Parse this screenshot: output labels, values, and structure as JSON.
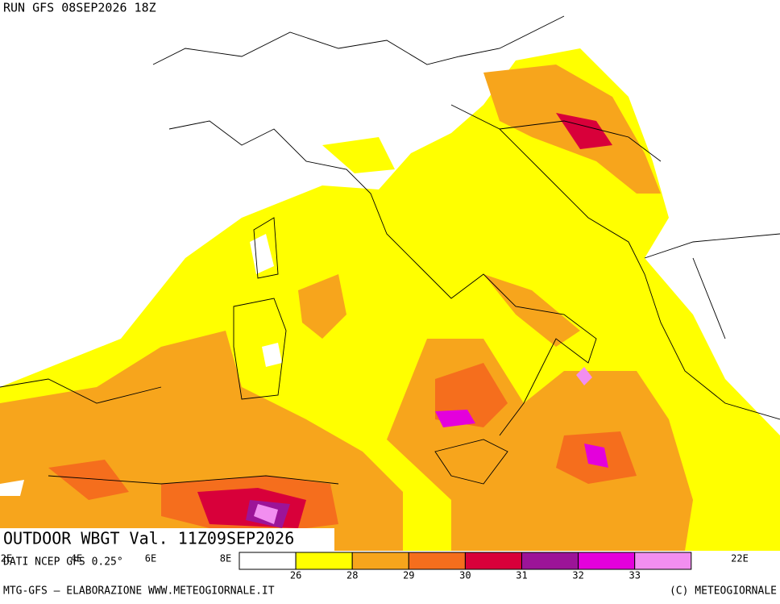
{
  "header": {
    "run": "RUN GFS 08SEP2026 18Z"
  },
  "overlay": {
    "title": "OUTDOOR WBGT Val. 11Z09SEP2026",
    "source": "DATI NCEP GFS 0.25°"
  },
  "longitudes": [
    "2E",
    "4E",
    "6E",
    "8E",
    "22E"
  ],
  "legend": {
    "colors": [
      "#ffffff",
      "#ffff00",
      "#f7a51c",
      "#f56e1d",
      "#d8003a",
      "#9c1498",
      "#e400dc",
      "#f28ef0"
    ],
    "levels": [
      "26",
      "28",
      "29",
      "30",
      "31",
      "32",
      "33"
    ]
  },
  "footer": {
    "left": "MTG-GFS – ELABORAZIONE WWW.METEOGIORNALE.IT",
    "right": "(C) METEOGIORNALE"
  }
}
